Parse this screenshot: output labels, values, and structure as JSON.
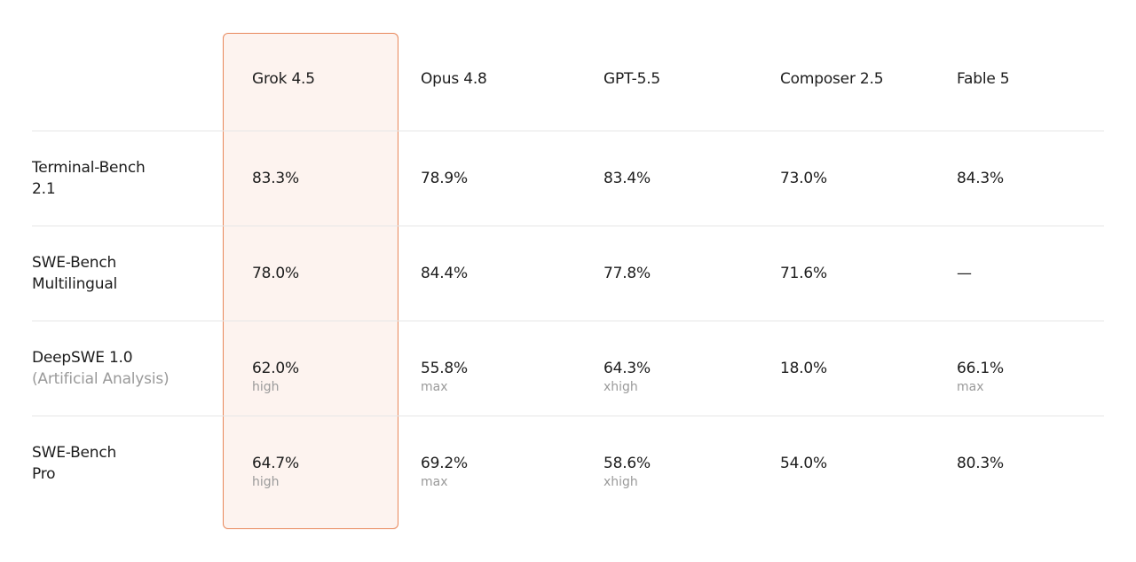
{
  "table": {
    "columns": [
      "Grok 4.5",
      "Opus 4.8",
      "GPT-5.5",
      "Composer 2.5",
      "Fable 5"
    ],
    "rows": [
      {
        "label": [
          "Terminal-Bench",
          "2.1"
        ],
        "cells": [
          {
            "value": "83.3%"
          },
          {
            "value": "78.9%"
          },
          {
            "value": "83.4%"
          },
          {
            "value": "73.0%"
          },
          {
            "value": "84.3%"
          }
        ]
      },
      {
        "label": [
          "SWE-Bench",
          "Multilingual"
        ],
        "cells": [
          {
            "value": "78.0%"
          },
          {
            "value": "84.4%"
          },
          {
            "value": "77.8%"
          },
          {
            "value": "71.6%"
          },
          {
            "value": "—"
          }
        ]
      },
      {
        "label": [
          "DeepSWE 1.0"
        ],
        "sublabel": "(Artificial Analysis)",
        "cells": [
          {
            "value": "62.0%",
            "note": "high"
          },
          {
            "value": "55.8%",
            "note": "max"
          },
          {
            "value": "64.3%",
            "note": "xhigh"
          },
          {
            "value": "18.0%"
          },
          {
            "value": "66.1%",
            "note": "max"
          }
        ]
      },
      {
        "label": [
          "SWE-Bench",
          "Pro"
        ],
        "cells": [
          {
            "value": "64.7%",
            "note": "high"
          },
          {
            "value": "69.2%",
            "note": "max"
          },
          {
            "value": "58.6%",
            "note": "xhigh"
          },
          {
            "value": "54.0%"
          },
          {
            "value": "80.3%"
          }
        ]
      }
    ]
  }
}
